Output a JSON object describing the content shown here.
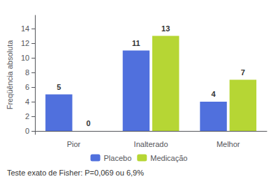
{
  "chart_data": {
    "type": "bar",
    "categories": [
      "Pior",
      "Inalterado",
      "Melhor"
    ],
    "series": [
      {
        "name": "Placebo",
        "values": [
          5,
          11,
          4
        ]
      },
      {
        "name": "Medicação",
        "values": [
          0,
          13,
          7
        ]
      }
    ],
    "ylabel": "Freqüência absoluta",
    "annotations": [
      "Teste exato de Fisher: P=0,069 ou 6,9%"
    ],
    "ylim": [
      -0.48,
      15.8
    ],
    "yticks": [
      0,
      2,
      4,
      6,
      8,
      10,
      12,
      14
    ],
    "grid": false,
    "legend": "bottom",
    "data_labels": true
  }
}
